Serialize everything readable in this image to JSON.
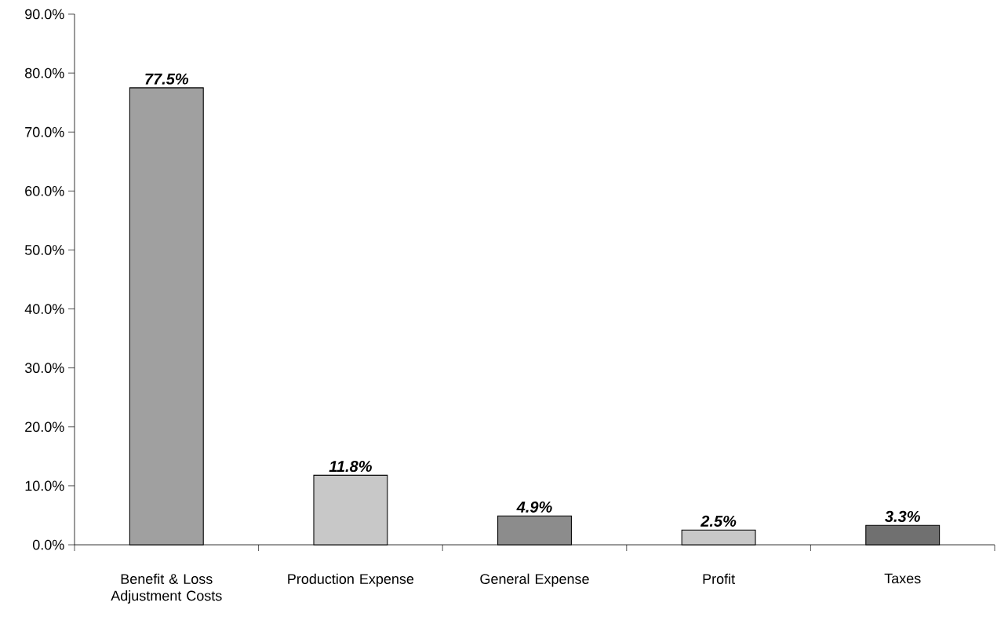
{
  "chart_data": {
    "type": "bar",
    "categories": [
      "Benefit & Loss Adjustment Costs",
      "Production Expense",
      "General Expense",
      "Profit",
      "Taxes"
    ],
    "values": [
      77.5,
      11.8,
      4.9,
      2.5,
      3.3
    ],
    "value_labels": [
      "77.5%",
      "11.8%",
      "4.9%",
      "2.5%",
      "3.3%"
    ],
    "colors": [
      "#a0a0a0",
      "#c8c8c8",
      "#8c8c8c",
      "#c8c8c8",
      "#707070"
    ],
    "ylim": [
      0,
      90
    ],
    "yticks": [
      {
        "value": 0,
        "label": "0.0%"
      },
      {
        "value": 10,
        "label": "10.0%"
      },
      {
        "value": 20,
        "label": "20.0%"
      },
      {
        "value": 30,
        "label": "30.0%"
      },
      {
        "value": 40,
        "label": "40.0%"
      },
      {
        "value": 50,
        "label": "50.0%"
      },
      {
        "value": 60,
        "label": "60.0%"
      },
      {
        "value": 70,
        "label": "70.0%"
      },
      {
        "value": 80,
        "label": "80.0%"
      },
      {
        "value": 90,
        "label": "90.0%"
      }
    ],
    "grid": false
  }
}
